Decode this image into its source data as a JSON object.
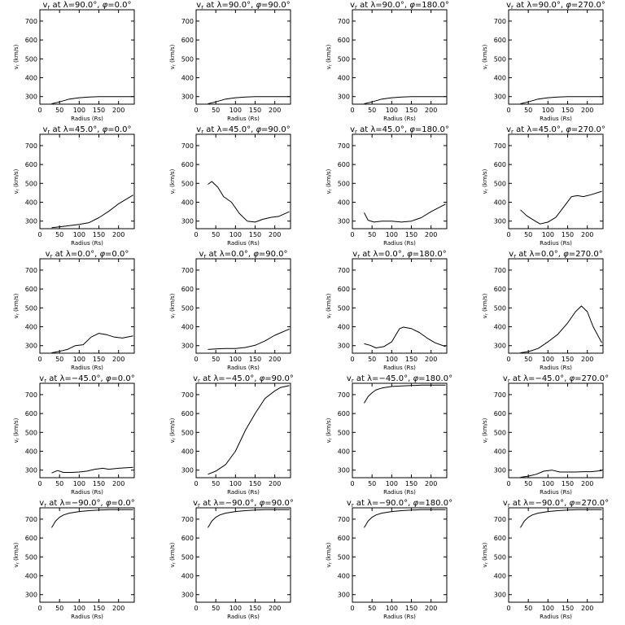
{
  "figure": {
    "xlabel": "Radius (Rs)",
    "ylabel": "v",
    "ylabel_sub": "r",
    "ylabel_unit": "(km/s)"
  },
  "chart_data": [
    {
      "type": "line",
      "title": "v_r at λ=90.0°, φ=0.0°",
      "title_lat": "90.0",
      "title_phi": "0.0",
      "xlim": [
        0,
        240
      ],
      "ylim": [
        260,
        760
      ],
      "x": [
        30,
        50,
        75,
        100,
        125,
        150,
        175,
        200,
        237
      ],
      "y": [
        262,
        272,
        287,
        294,
        298,
        300,
        300,
        300,
        300
      ]
    },
    {
      "type": "line",
      "title": "v_r at λ=90.0°, φ=90.0°",
      "title_lat": "90.0",
      "title_phi": "90.0",
      "xlim": [
        0,
        240
      ],
      "ylim": [
        260,
        760
      ],
      "x": [
        30,
        50,
        75,
        100,
        125,
        150,
        175,
        200,
        237
      ],
      "y": [
        262,
        272,
        287,
        294,
        298,
        300,
        300,
        300,
        300
      ]
    },
    {
      "type": "line",
      "title": "v_r at λ=90.0°, φ=180.0°",
      "title_lat": "90.0",
      "title_phi": "180.0",
      "xlim": [
        0,
        240
      ],
      "ylim": [
        260,
        760
      ],
      "x": [
        30,
        50,
        75,
        100,
        125,
        150,
        175,
        200,
        237
      ],
      "y": [
        262,
        272,
        287,
        294,
        298,
        300,
        300,
        300,
        300
      ]
    },
    {
      "type": "line",
      "title": "v_r at λ=90.0°, φ=270.0°",
      "title_lat": "90.0",
      "title_phi": "270.0",
      "xlim": [
        0,
        240
      ],
      "ylim": [
        260,
        760
      ],
      "x": [
        30,
        50,
        75,
        100,
        125,
        150,
        175,
        200,
        237
      ],
      "y": [
        262,
        272,
        287,
        294,
        298,
        300,
        300,
        300,
        300
      ]
    },
    {
      "type": "line",
      "title": "v_r at λ=45.0°, φ=0.0°",
      "title_lat": "45.0",
      "title_phi": "0.0",
      "xlim": [
        0,
        240
      ],
      "ylim": [
        260,
        760
      ],
      "x": [
        30,
        50,
        75,
        100,
        125,
        150,
        175,
        200,
        237
      ],
      "y": [
        265,
        270,
        276,
        283,
        292,
        318,
        352,
        392,
        438
      ]
    },
    {
      "type": "line",
      "title": "v_r at λ=45.0°, φ=90.0°",
      "title_lat": "45.0",
      "title_phi": "90.0",
      "xlim": [
        0,
        240
      ],
      "ylim": [
        260,
        760
      ],
      "x": [
        30,
        40,
        55,
        70,
        90,
        110,
        130,
        150,
        170,
        190,
        210,
        237
      ],
      "y": [
        495,
        510,
        480,
        430,
        400,
        340,
        300,
        295,
        310,
        320,
        325,
        350
      ]
    },
    {
      "type": "line",
      "title": "v_r at λ=45.0°, φ=180.0°",
      "title_lat": "45.0",
      "title_phi": "180.0",
      "xlim": [
        0,
        240
      ],
      "ylim": [
        260,
        760
      ],
      "x": [
        30,
        40,
        55,
        75,
        100,
        125,
        150,
        175,
        200,
        237
      ],
      "y": [
        345,
        305,
        295,
        300,
        300,
        295,
        300,
        318,
        350,
        390
      ]
    },
    {
      "type": "line",
      "title": "v_r at λ=45.0°, φ=270.0°",
      "title_lat": "45.0",
      "title_phi": "270.0",
      "xlim": [
        0,
        240
      ],
      "ylim": [
        260,
        760
      ],
      "x": [
        30,
        45,
        60,
        80,
        100,
        120,
        140,
        160,
        175,
        190,
        210,
        237
      ],
      "y": [
        360,
        330,
        310,
        285,
        295,
        320,
        375,
        430,
        435,
        430,
        440,
        458
      ]
    },
    {
      "type": "line",
      "title": "v_r at λ=0.0°, φ=0.0°",
      "title_lat": "0.0",
      "title_phi": "0.0",
      "xlim": [
        0,
        240
      ],
      "ylim": [
        260,
        760
      ],
      "x": [
        30,
        50,
        70,
        90,
        110,
        130,
        150,
        170,
        190,
        210,
        237
      ],
      "y": [
        262,
        270,
        280,
        300,
        305,
        345,
        365,
        358,
        345,
        340,
        352
      ]
    },
    {
      "type": "line",
      "title": "v_r at λ=0.0°, φ=90.0°",
      "title_lat": "0.0",
      "title_phi": "90.0",
      "xlim": [
        0,
        240
      ],
      "ylim": [
        260,
        760
      ],
      "x": [
        30,
        50,
        75,
        100,
        125,
        150,
        175,
        200,
        237
      ],
      "y": [
        280,
        283,
        285,
        285,
        290,
        302,
        325,
        355,
        388
      ]
    },
    {
      "type": "line",
      "title": "v_r at λ=0.0°, φ=180.0°",
      "title_lat": "0.0",
      "title_phi": "180.0",
      "xlim": [
        0,
        240
      ],
      "ylim": [
        260,
        760
      ],
      "x": [
        30,
        45,
        60,
        80,
        100,
        120,
        130,
        150,
        170,
        190,
        210,
        237
      ],
      "y": [
        310,
        302,
        288,
        295,
        320,
        390,
        398,
        390,
        370,
        340,
        315,
        295
      ]
    },
    {
      "type": "line",
      "title": "v_r at λ=0.0°, φ=270.0°",
      "title_lat": "0.0",
      "title_phi": "270.0",
      "xlim": [
        0,
        240
      ],
      "ylim": [
        260,
        760
      ],
      "x": [
        30,
        50,
        75,
        100,
        125,
        150,
        170,
        185,
        200,
        215,
        237
      ],
      "y": [
        262,
        268,
        285,
        320,
        360,
        420,
        480,
        510,
        480,
        400,
        315
      ]
    },
    {
      "type": "line",
      "title": "v_r at λ=−45.0°, φ=0.0°",
      "title_lat": "−45.0",
      "title_phi": "0.0",
      "xlim": [
        0,
        240
      ],
      "ylim": [
        260,
        760
      ],
      "x": [
        30,
        45,
        60,
        80,
        100,
        120,
        140,
        160,
        175,
        200,
        237
      ],
      "y": [
        285,
        298,
        288,
        288,
        290,
        295,
        305,
        310,
        305,
        310,
        315
      ]
    },
    {
      "type": "line",
      "title": "v_r at λ=−45.0°, φ=90.0°",
      "title_lat": "−45.0",
      "title_phi": "90.0",
      "xlim": [
        0,
        240
      ],
      "ylim": [
        260,
        760
      ],
      "x": [
        30,
        50,
        75,
        100,
        125,
        150,
        175,
        200,
        215,
        237
      ],
      "y": [
        278,
        295,
        330,
        400,
        510,
        600,
        680,
        720,
        738,
        748
      ]
    },
    {
      "type": "line",
      "title": "v_r at λ=−45.0°, φ=180.0°",
      "title_lat": "−45.0",
      "title_phi": "180.0",
      "xlim": [
        0,
        240
      ],
      "ylim": [
        260,
        760
      ],
      "x": [
        30,
        40,
        50,
        60,
        75,
        100,
        125,
        150,
        175,
        200,
        237
      ],
      "y": [
        655,
        690,
        710,
        725,
        735,
        743,
        746,
        748,
        750,
        750,
        750
      ]
    },
    {
      "type": "line",
      "title": "v_r at λ=−45.0°, φ=270.0°",
      "title_lat": "−45.0",
      "title_phi": "270.0",
      "xlim": [
        0,
        240
      ],
      "ylim": [
        260,
        760
      ],
      "x": [
        30,
        50,
        70,
        90,
        110,
        130,
        150,
        170,
        190,
        210,
        237
      ],
      "y": [
        262,
        268,
        278,
        295,
        300,
        290,
        290,
        290,
        292,
        292,
        298
      ]
    },
    {
      "type": "line",
      "title": "v_r at λ=−90.0°, φ=0.0°",
      "title_lat": "−90.0",
      "title_phi": "0.0",
      "xlim": [
        0,
        240
      ],
      "ylim": [
        260,
        760
      ],
      "x": [
        30,
        40,
        50,
        60,
        75,
        100,
        125,
        150,
        175,
        200,
        237
      ],
      "y": [
        655,
        690,
        710,
        722,
        732,
        740,
        745,
        748,
        750,
        750,
        750
      ]
    },
    {
      "type": "line",
      "title": "v_r at λ=−90.0°, φ=90.0°",
      "title_lat": "−90.0",
      "title_phi": "90.0",
      "xlim": [
        0,
        240
      ],
      "ylim": [
        260,
        760
      ],
      "x": [
        30,
        40,
        50,
        60,
        75,
        100,
        125,
        150,
        175,
        200,
        237
      ],
      "y": [
        655,
        690,
        710,
        722,
        732,
        740,
        745,
        748,
        750,
        750,
        750
      ]
    },
    {
      "type": "line",
      "title": "v_r at λ=−90.0°, φ=180.0°",
      "title_lat": "−90.0",
      "title_phi": "180.0",
      "xlim": [
        0,
        240
      ],
      "ylim": [
        260,
        760
      ],
      "x": [
        30,
        40,
        50,
        60,
        75,
        100,
        125,
        150,
        175,
        200,
        237
      ],
      "y": [
        655,
        690,
        710,
        722,
        732,
        740,
        745,
        748,
        750,
        750,
        750
      ]
    },
    {
      "type": "line",
      "title": "v_r at λ=−90.0°, φ=270.0°",
      "title_lat": "−90.0",
      "title_phi": "270.0",
      "xlim": [
        0,
        240
      ],
      "ylim": [
        260,
        760
      ],
      "x": [
        30,
        40,
        50,
        60,
        75,
        100,
        125,
        150,
        175,
        200,
        237
      ],
      "y": [
        655,
        690,
        710,
        722,
        732,
        740,
        745,
        748,
        750,
        750,
        750
      ]
    }
  ],
  "axis": {
    "xticks": [
      0,
      50,
      100,
      150,
      200
    ],
    "yticks": [
      300,
      400,
      500,
      600,
      700
    ]
  }
}
